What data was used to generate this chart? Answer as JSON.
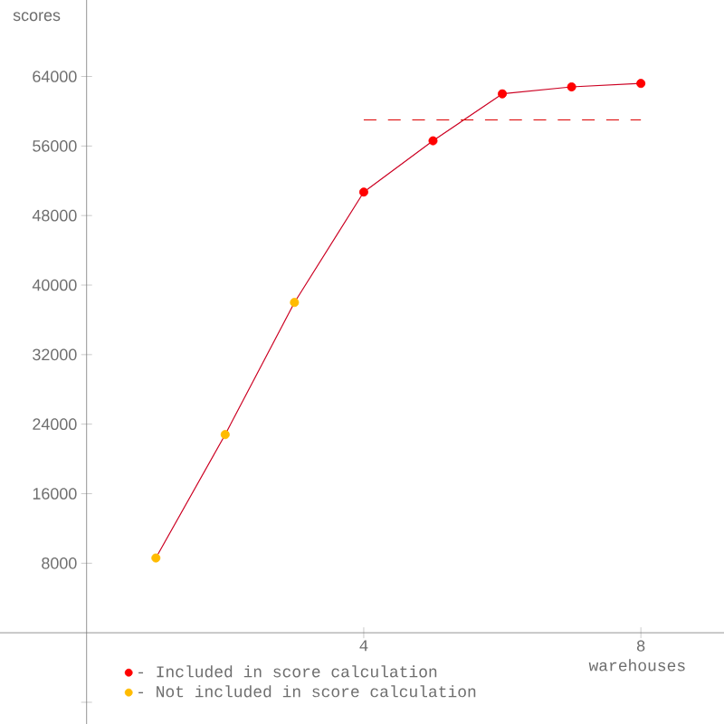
{
  "chart_data": {
    "type": "line",
    "xlabel": "warehouses",
    "ylabel": "scores",
    "xlim": [
      -1.25,
      9.2
    ],
    "ylim": [
      -10500,
      72800
    ],
    "xticks": [
      4,
      8
    ],
    "yticks": [
      {
        "value": -8000,
        "label": null
      },
      8000,
      16000,
      24000,
      32000,
      40000,
      48000,
      56000,
      64000
    ],
    "legend": "bottom left",
    "series": [
      {
        "color": "#cc0022",
        "x": [
          1,
          2,
          3,
          4,
          5,
          6,
          7,
          8
        ],
        "values": [
          8600,
          22800,
          38000,
          50700,
          56600,
          62000,
          62800,
          63200
        ],
        "marker": "none"
      },
      {
        "type": "scatter",
        "name": "- Included in score calculation",
        "color": "#ff0000",
        "x": [
          4,
          5,
          6,
          7,
          8
        ],
        "values": [
          50700,
          56600,
          62000,
          62800,
          63200
        ],
        "marker": "circle"
      },
      {
        "type": "scatter",
        "name": "- Not included in score calculation",
        "color": "#ffbb00",
        "x": [
          1,
          2,
          3
        ],
        "values": [
          8600,
          22800,
          38000
        ],
        "marker": "circle"
      },
      {
        "color": "#dd0000",
        "x": [
          4,
          8
        ],
        "values": [
          59000,
          59000
        ],
        "line_style": "dashed",
        "marker": "none"
      }
    ]
  }
}
